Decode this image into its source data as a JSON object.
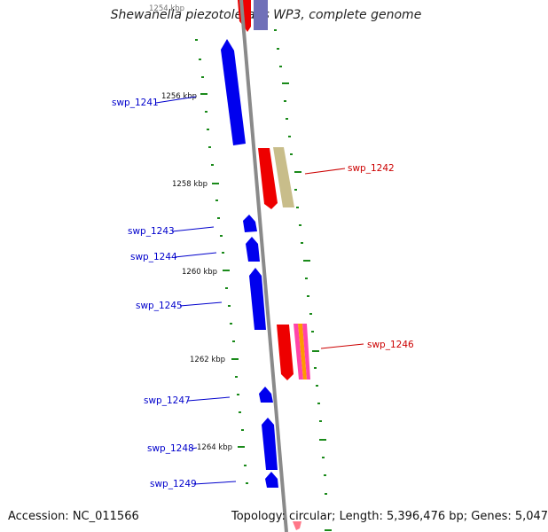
{
  "title": "Shewanella piezotolerans WP3, complete genome",
  "accession": "Accession: NC_011566",
  "summary": "Topology: circular; Length: 5,396,476 bp; Genes: 5,047",
  "kbp_ticks": [
    "1254 kbp",
    "1256 kbp",
    "1258 kbp",
    "1260 kbp",
    "1262 kbp",
    "1264 kbp"
  ],
  "genes": [
    {
      "id": "swp_1241",
      "strand": "minus",
      "color": "#0000ee"
    },
    {
      "id": "swp_1242",
      "strand": "plus",
      "color": "#ee0000"
    },
    {
      "id": "swp_1243",
      "strand": "minus",
      "color": "#0000ee"
    },
    {
      "id": "swp_1244",
      "strand": "minus",
      "color": "#0000ee"
    },
    {
      "id": "swp_1245",
      "strand": "minus",
      "color": "#0000ee"
    },
    {
      "id": "swp_1246",
      "strand": "plus",
      "color": "#ee0000"
    },
    {
      "id": "swp_1247",
      "strand": "minus",
      "color": "#0000ee"
    },
    {
      "id": "swp_1248",
      "strand": "minus",
      "color": "#0000ee"
    },
    {
      "id": "swp_1249",
      "strand": "minus",
      "color": "#0000ee"
    }
  ],
  "colors": {
    "minus_strand": "#0000ee",
    "plus_strand": "#ee0000",
    "backbone": "#888888",
    "tick": "#1a8a1a",
    "feature_khaki": "#c8bd8a",
    "feature_magenta": "#ff44aa",
    "feature_orange": "#ff9900"
  }
}
